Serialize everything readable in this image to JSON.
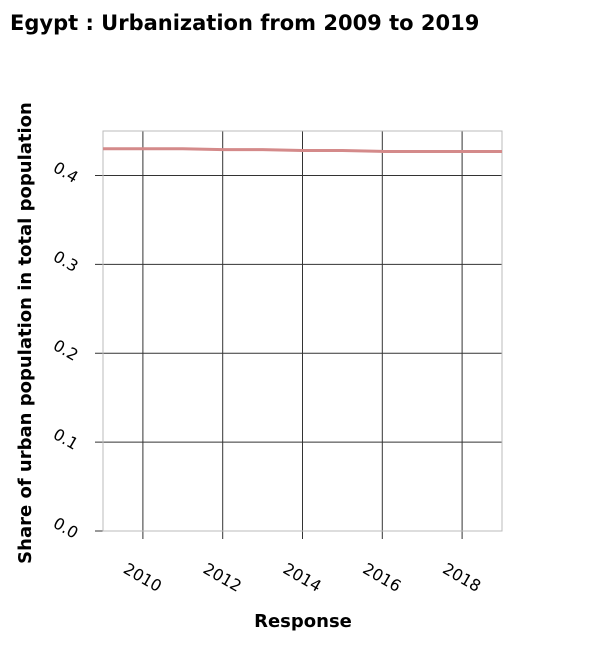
{
  "chart_data": {
    "type": "line",
    "title": "Egypt : Urbanization from 2009 to 2019",
    "xlabel": "Response",
    "ylabel": "Share of urban population in total population",
    "xlim": [
      2009,
      2019
    ],
    "ylim": [
      0,
      0.45
    ],
    "x_ticks": [
      2010,
      2012,
      2014,
      2016,
      2018
    ],
    "x_tick_labels": [
      "2010",
      "2012",
      "2014",
      "2016",
      "2018"
    ],
    "y_ticks": [
      0,
      0.1,
      0.2,
      0.3,
      0.4
    ],
    "y_tick_labels": [
      "0.0",
      "0.1",
      "0.2",
      "0.3",
      "0.4"
    ],
    "grid": true,
    "series": [
      {
        "name": "Share of urban population",
        "color": "#d48a8a",
        "x": [
          2009,
          2010,
          2011,
          2012,
          2013,
          2014,
          2015,
          2016,
          2017,
          2018,
          2019
        ],
        "y": [
          0.43,
          0.43,
          0.43,
          0.429,
          0.429,
          0.428,
          0.428,
          0.427,
          0.427,
          0.427,
          0.427
        ]
      }
    ]
  }
}
